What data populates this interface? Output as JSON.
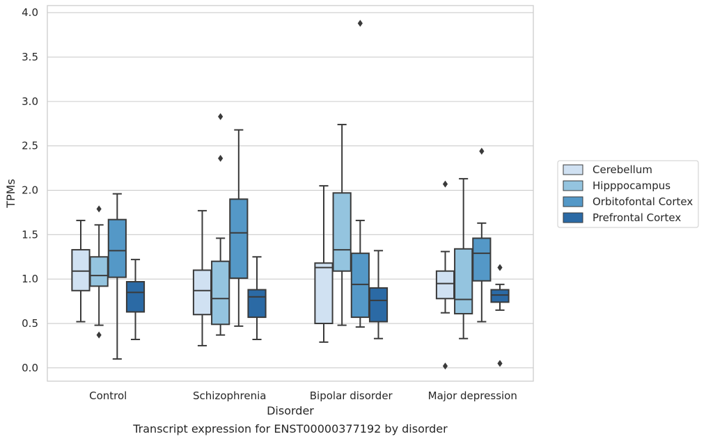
{
  "caption": "Transcript expression for ENST00000377192 by disorder",
  "chart_data": {
    "type": "box",
    "title": "",
    "xlabel": "Disorder",
    "ylabel": "TPMs",
    "ylim": [
      -0.15,
      4.08
    ],
    "yticks": [
      "0.0",
      "0.5",
      "1.0",
      "1.5",
      "2.0",
      "2.5",
      "3.0",
      "3.5",
      "4.0"
    ],
    "grid": true,
    "legend_position": "right",
    "categories": [
      "Control",
      "Schizophrenia",
      "Bipolar disorder",
      "Major depression"
    ],
    "series": [
      {
        "name": "Cerebellum",
        "color": "#d0e1f2",
        "boxes": [
          {
            "whislo": 0.52,
            "q1": 0.87,
            "med": 1.09,
            "q3": 1.33,
            "whishi": 1.66,
            "fliers": []
          },
          {
            "whislo": 0.25,
            "q1": 0.6,
            "med": 0.87,
            "q3": 1.1,
            "whishi": 1.77,
            "fliers": []
          },
          {
            "whislo": 0.29,
            "q1": 0.5,
            "med": 1.13,
            "q3": 1.18,
            "whishi": 2.05,
            "fliers": []
          },
          {
            "whislo": 0.62,
            "q1": 0.78,
            "med": 0.95,
            "q3": 1.09,
            "whishi": 1.31,
            "fliers": [
              0.02,
              2.07
            ]
          }
        ]
      },
      {
        "name": "Hipppocampus",
        "color": "#94c4df",
        "boxes": [
          {
            "whislo": 0.48,
            "q1": 0.92,
            "med": 1.04,
            "q3": 1.25,
            "whishi": 1.61,
            "fliers": [
              0.37,
              1.79
            ]
          },
          {
            "whislo": 0.37,
            "q1": 0.49,
            "med": 0.78,
            "q3": 1.2,
            "whishi": 1.46,
            "fliers": [
              2.36,
              2.83
            ]
          },
          {
            "whislo": 0.48,
            "q1": 1.09,
            "med": 1.33,
            "q3": 1.97,
            "whishi": 2.74,
            "fliers": []
          },
          {
            "whislo": 0.33,
            "q1": 0.61,
            "med": 0.77,
            "q3": 1.34,
            "whishi": 2.13,
            "fliers": []
          }
        ]
      },
      {
        "name": "Orbitofontal Cortex",
        "color": "#5498c7",
        "boxes": [
          {
            "whislo": 0.1,
            "q1": 1.02,
            "med": 1.32,
            "q3": 1.67,
            "whishi": 1.96,
            "fliers": []
          },
          {
            "whislo": 0.47,
            "q1": 1.01,
            "med": 1.52,
            "q3": 1.9,
            "whishi": 2.68,
            "fliers": []
          },
          {
            "whislo": 0.46,
            "q1": 0.57,
            "med": 0.94,
            "q3": 1.29,
            "whishi": 1.66,
            "fliers": [
              3.88
            ]
          },
          {
            "whislo": 0.52,
            "q1": 0.98,
            "med": 1.29,
            "q3": 1.46,
            "whishi": 1.63,
            "fliers": [
              2.44
            ]
          }
        ]
      },
      {
        "name": "Prefrontal Cortex",
        "color": "#2b6aa5",
        "boxes": [
          {
            "whislo": 0.32,
            "q1": 0.63,
            "med": 0.85,
            "q3": 0.97,
            "whishi": 1.22,
            "fliers": []
          },
          {
            "whislo": 0.32,
            "q1": 0.57,
            "med": 0.8,
            "q3": 0.88,
            "whishi": 1.25,
            "fliers": []
          },
          {
            "whislo": 0.33,
            "q1": 0.52,
            "med": 0.76,
            "q3": 0.9,
            "whishi": 1.32,
            "fliers": []
          },
          {
            "whislo": 0.65,
            "q1": 0.74,
            "med": 0.82,
            "q3": 0.88,
            "whishi": 0.94,
            "fliers": [
              0.05,
              1.13
            ]
          }
        ]
      }
    ]
  }
}
